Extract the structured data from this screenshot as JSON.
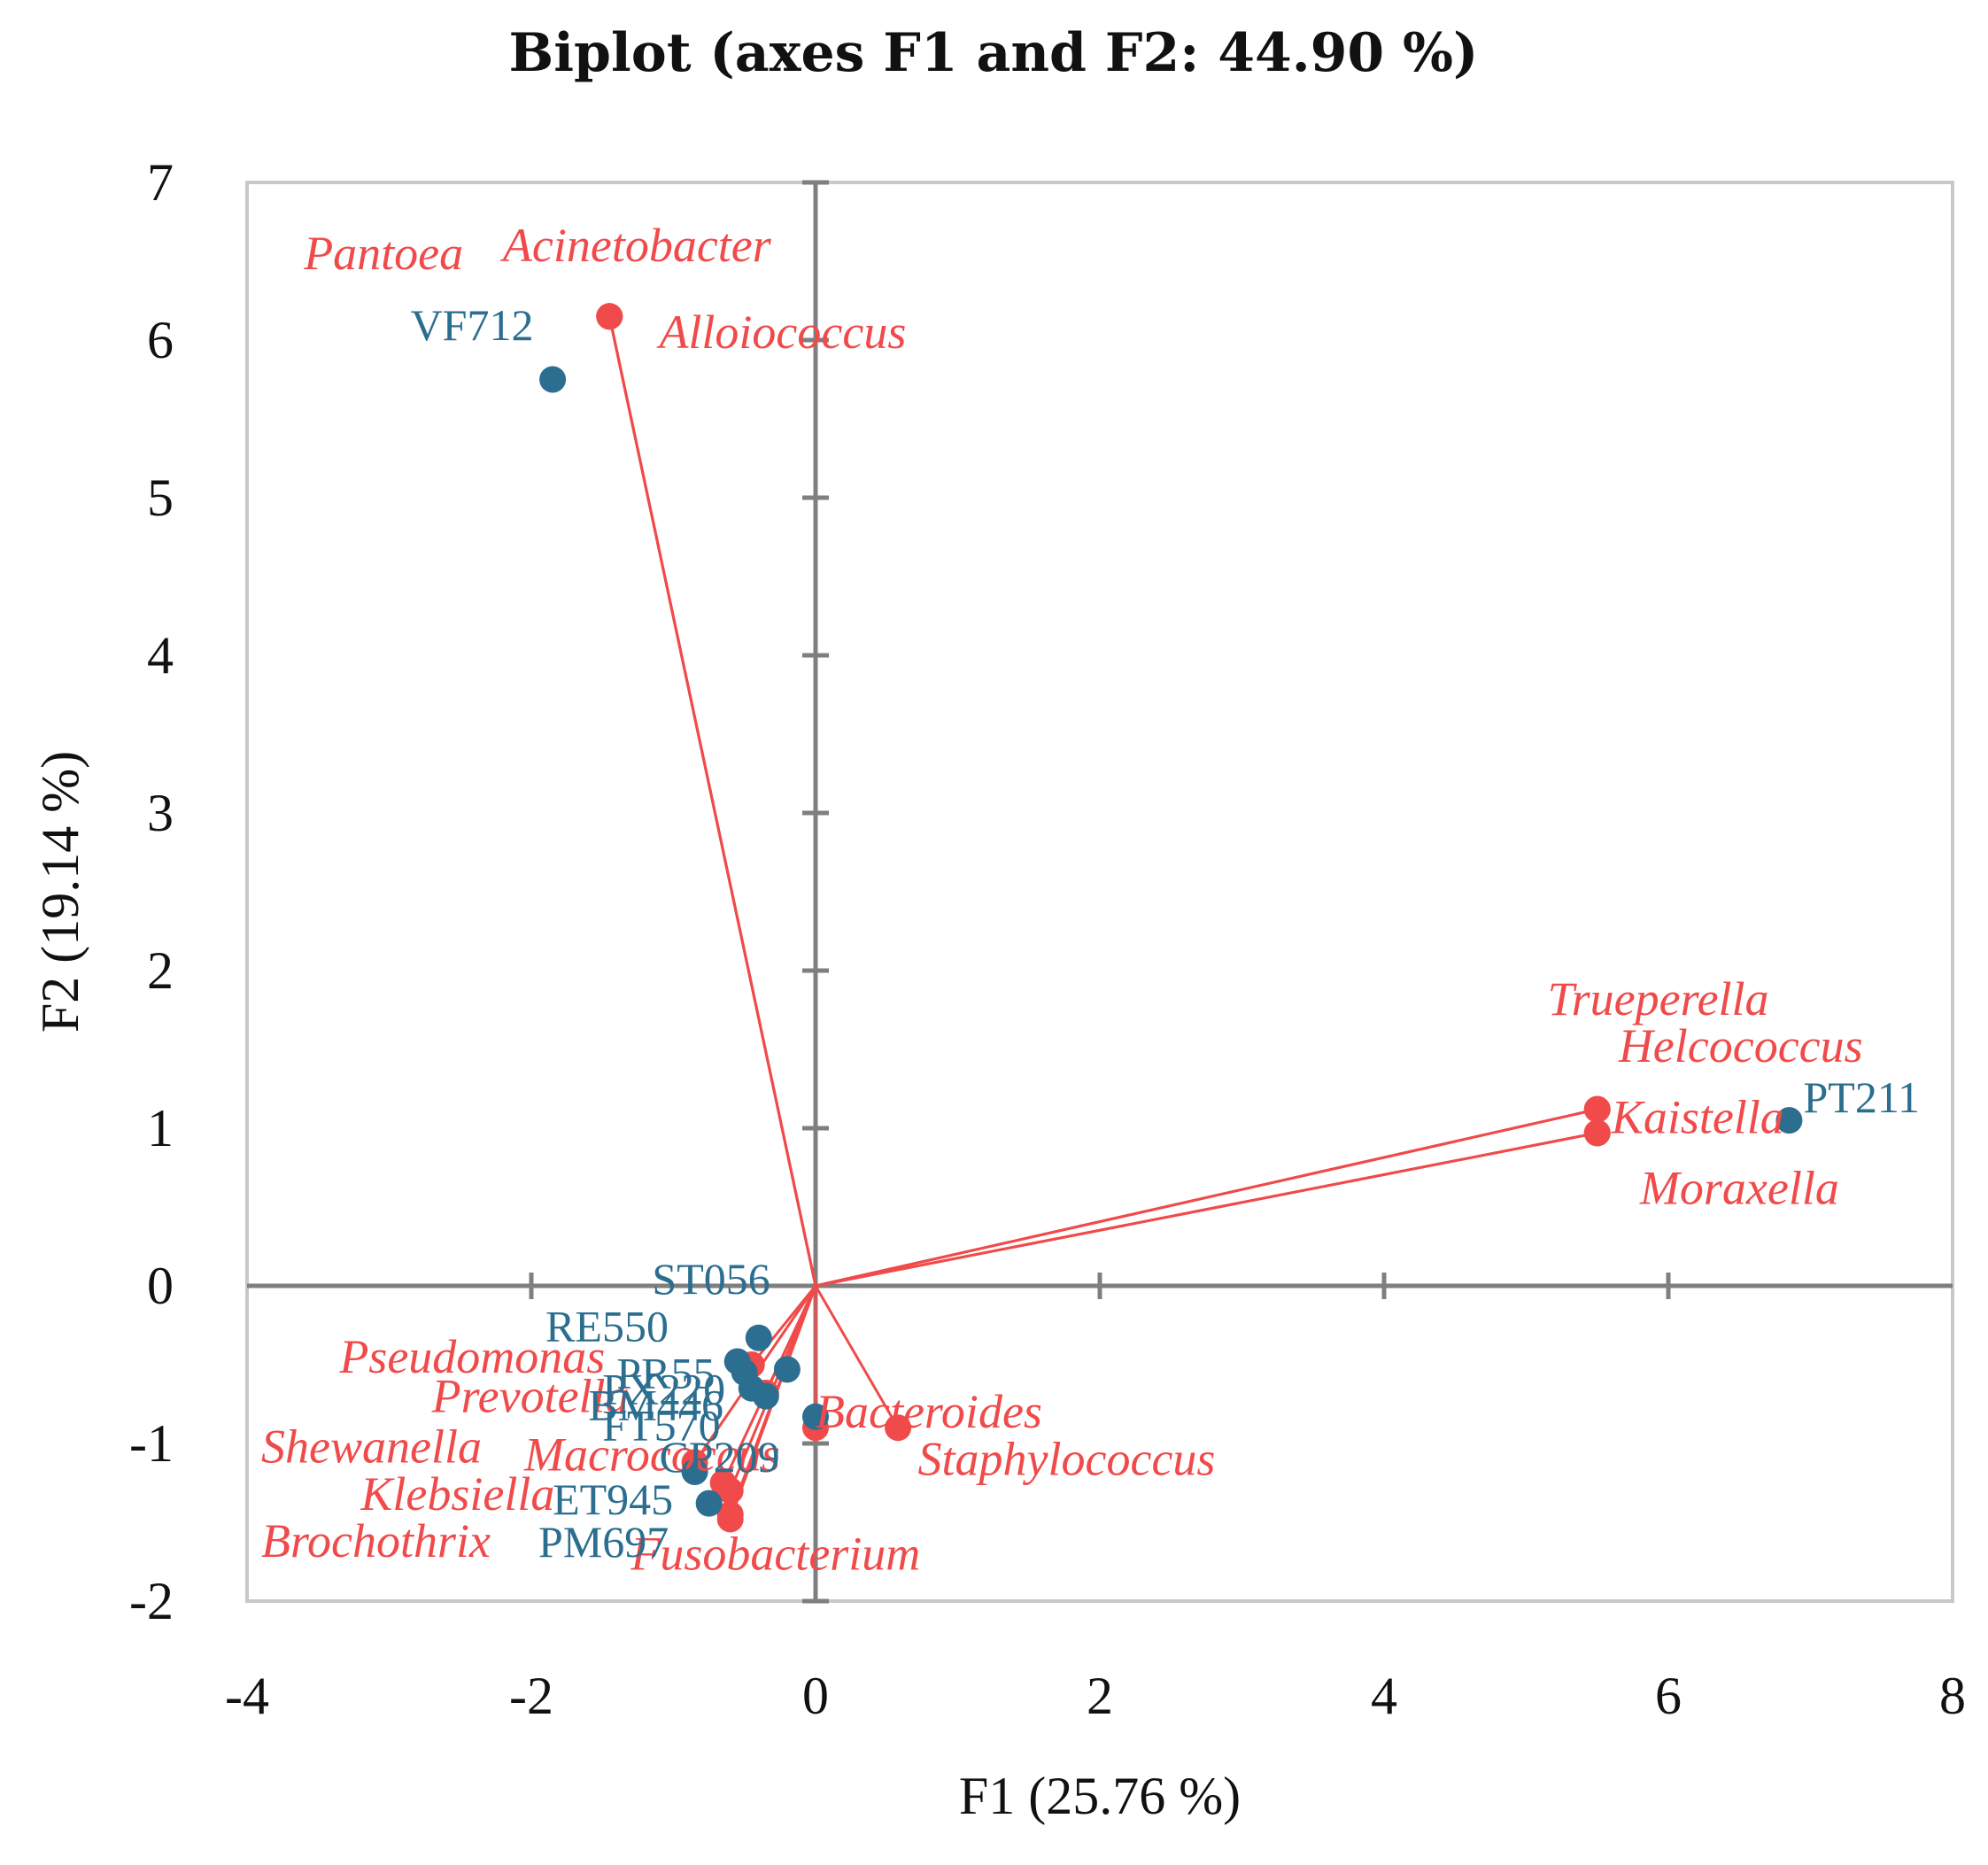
{
  "chart_data": {
    "type": "scatter",
    "subtype": "biplot",
    "title": "Biplot (axes F1 and F2: 44.90 %)",
    "xlabel": "F1 (25.76 %)",
    "ylabel": "F2 (19.14 %)",
    "xlim": [
      -4,
      8
    ],
    "ylim": [
      -2,
      7
    ],
    "xticks": [
      -4,
      -2,
      0,
      2,
      4,
      6,
      8
    ],
    "yticks": [
      -2,
      -1,
      0,
      1,
      2,
      3,
      4,
      5,
      6,
      7
    ],
    "xtick_labels": [
      "-4",
      "-2",
      "0",
      "2",
      "4",
      "6",
      "8"
    ],
    "ytick_labels": [
      "-2",
      "-1",
      "0",
      "1",
      "2",
      "3",
      "4",
      "5",
      "6",
      "7"
    ],
    "colors": {
      "observations": "#2b6e8f",
      "variables": "#f04a4a",
      "axis": "#7f7f7f",
      "frame": "#c8c8c8"
    },
    "observations": [
      {
        "label": "VF712",
        "x": -1.85,
        "y": 5.75,
        "lx": -2.85,
        "ly": 6.0
      },
      {
        "label": "PT211",
        "x": 6.85,
        "y": 1.05,
        "lx": 6.95,
        "ly": 1.1
      },
      {
        "label": "ST056",
        "x": -0.4,
        "y": -0.33,
        "lx": -1.15,
        "ly": -0.05
      },
      {
        "label": "RE550",
        "x": -0.55,
        "y": -0.48,
        "lx": -1.9,
        "ly": -0.35
      },
      {
        "label": "PR55",
        "x": -0.5,
        "y": -0.55,
        "lx": -1.4,
        "ly": -0.65
      },
      {
        "label": "PX220",
        "x": -0.2,
        "y": -0.53,
        "lx": -1.5,
        "ly": -0.75
      },
      {
        "label": "BM446",
        "x": -0.45,
        "y": -0.65,
        "lx": -1.6,
        "ly": -0.85
      },
      {
        "label": "FT570",
        "x": -0.35,
        "y": -0.7,
        "lx": -1.5,
        "ly": -0.98
      },
      {
        "label": "CP209",
        "x": 0.0,
        "y": -0.83,
        "lx": -1.1,
        "ly": -1.18
      },
      {
        "label": "ET945",
        "x": -0.75,
        "y": -1.38,
        "lx": -1.85,
        "ly": -1.45
      },
      {
        "label": "PM697",
        "x": -0.85,
        "y": -1.18,
        "lx": -1.95,
        "ly": -1.72
      }
    ],
    "variables": [
      {
        "label": "Acinetobacter",
        "x": -1.45,
        "y": 6.15,
        "lx": -2.2,
        "ly": 6.5
      },
      {
        "label": "Pantoea",
        "x": -1.45,
        "y": 6.15,
        "lx": -3.6,
        "ly": 6.45
      },
      {
        "label": "Alloiococcus",
        "x": -1.45,
        "y": 6.15,
        "lx": -1.1,
        "ly": 5.95
      },
      {
        "label": "Trueperella",
        "x": 5.5,
        "y": 1.12,
        "lx": 5.15,
        "ly": 1.72
      },
      {
        "label": "Helcococcus",
        "x": 5.5,
        "y": 1.12,
        "lx": 5.65,
        "ly": 1.42
      },
      {
        "label": "Kaistella",
        "x": 5.5,
        "y": 0.97,
        "lx": 5.6,
        "ly": 0.97
      },
      {
        "label": "Moraxella",
        "x": 5.5,
        "y": 0.97,
        "lx": 5.8,
        "ly": 0.52
      },
      {
        "label": "Staphylococcus",
        "x": 0.58,
        "y": -0.9,
        "lx": 0.72,
        "ly": -1.2
      },
      {
        "label": "Pseudomonas",
        "x": -0.45,
        "y": -0.5,
        "lx": -3.35,
        "ly": -0.55
      },
      {
        "label": "Prevotella",
        "x": -0.35,
        "y": -0.68,
        "lx": -2.7,
        "ly": -0.8
      },
      {
        "label": "Shewanella",
        "x": -0.85,
        "y": -1.12,
        "lx": -3.9,
        "ly": -1.12
      },
      {
        "label": "Macrococcus",
        "x": -0.65,
        "y": -1.25,
        "lx": -2.05,
        "ly": -1.17
      },
      {
        "label": "Klebsiella",
        "x": -0.6,
        "y": -1.3,
        "lx": -3.2,
        "ly": -1.42
      },
      {
        "label": "Brochothrix",
        "x": -0.6,
        "y": -1.45,
        "lx": -3.9,
        "ly": -1.72
      },
      {
        "label": "Fusobacterium",
        "x": -0.6,
        "y": -1.48,
        "lx": -1.3,
        "ly": -1.8
      },
      {
        "label": "Bacteroides",
        "x": 0.0,
        "y": -0.9,
        "lx": 0.0,
        "ly": -0.9
      }
    ]
  }
}
